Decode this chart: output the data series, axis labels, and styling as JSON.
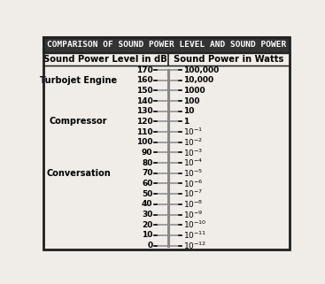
{
  "title": "COMPARISON OF SOUND POWER LEVEL AND SOUND POWER",
  "col1_header": "Sound Power Level in dB",
  "col2_header": "Sound Power in Watts",
  "db_values": [
    170,
    160,
    150,
    140,
    130,
    120,
    110,
    100,
    90,
    80,
    70,
    60,
    50,
    40,
    30,
    20,
    10,
    0
  ],
  "watts_labels": [
    "100,000",
    "10,000",
    "1000",
    "100",
    "10",
    "1",
    "$10^{-1}$",
    "$10^{-2}$",
    "$10^{-3}$",
    "$10^{-4}$",
    "$10^{-5}$",
    "$10^{-6}$",
    "$10^{-7}$",
    "$10^{-8}$",
    "$10^{-9}$",
    "$10^{-10}$",
    "$10^{-11}$",
    "$10^{-12}$"
  ],
  "source_labels": [
    {
      "text": "Turbojet Engine",
      "db": 160
    },
    {
      "text": "Compressor",
      "db": 120
    },
    {
      "text": "Conversation",
      "db": 70
    }
  ],
  "bg_color": "#f0ede8",
  "title_bg": "#333333",
  "title_color": "#ffffff",
  "border_color": "#222222",
  "tick_gray": "#888888"
}
